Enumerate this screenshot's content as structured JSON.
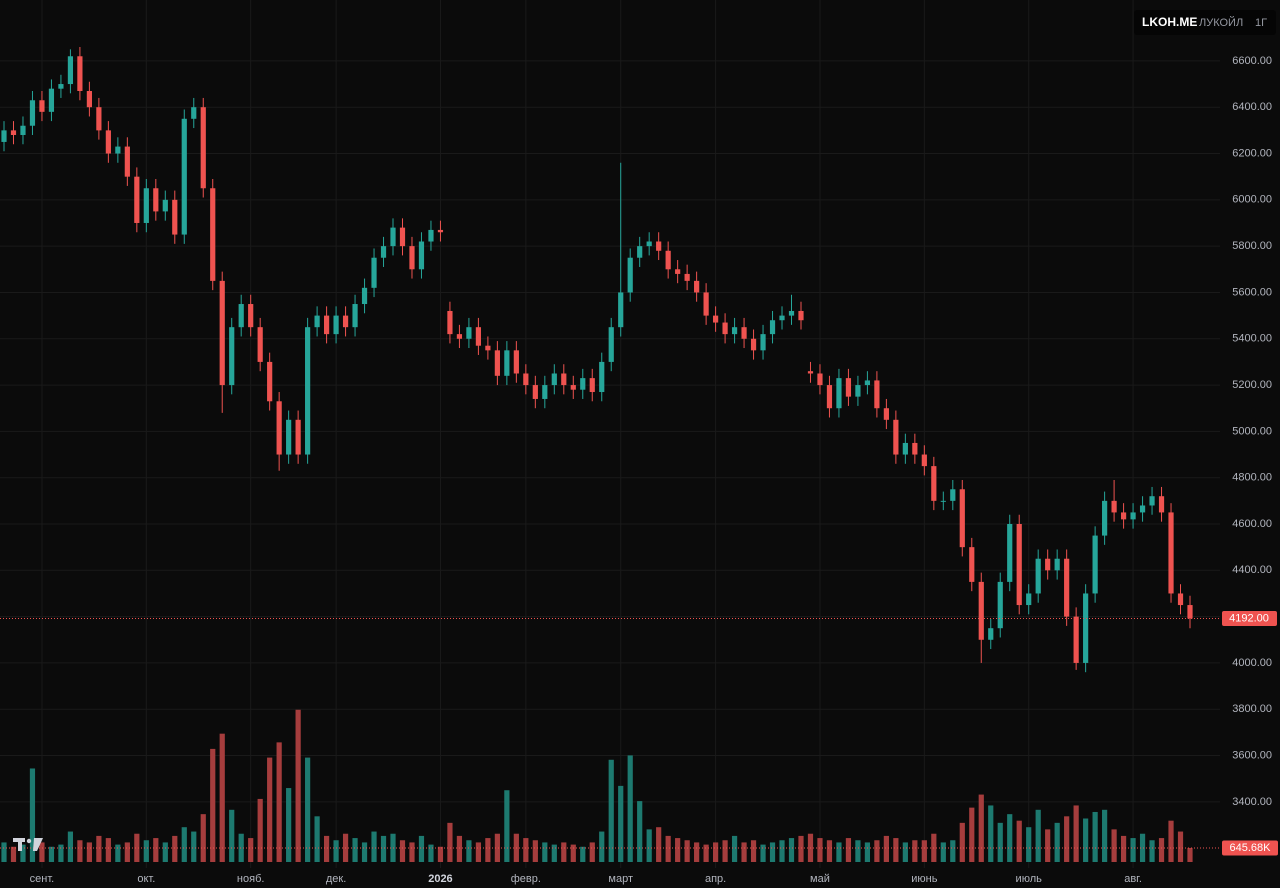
{
  "header": {
    "symbol": "LKOH.ME",
    "name": "ЛУКОЙЛ",
    "interval": "1Г"
  },
  "chart_data": {
    "type": "candlestick",
    "up_color": "#26a69a",
    "down_color": "#ef5350",
    "volume_up_color": "#1d7a70",
    "volume_down_color": "#a63d3d",
    "ylim": [
      3028,
      6863
    ],
    "yticks": [
      {
        "value": 3400,
        "label": "3400.00"
      },
      {
        "value": 3600,
        "label": "3600.00"
      },
      {
        "value": 3800,
        "label": "3800.00"
      },
      {
        "value": 4000,
        "label": "4000.00"
      },
      {
        "value": 4200,
        "label": "4200.00"
      },
      {
        "value": 4400,
        "label": "4400.00"
      },
      {
        "value": 4600,
        "label": "4600.00"
      },
      {
        "value": 4800,
        "label": "4800.00"
      },
      {
        "value": 5000,
        "label": "5000.00"
      },
      {
        "value": 5200,
        "label": "5200.00"
      },
      {
        "value": 5400,
        "label": "5400.00"
      },
      {
        "value": 5600,
        "label": "5600.00"
      },
      {
        "value": 5800,
        "label": "5800.00"
      },
      {
        "value": 6000,
        "label": "6000.00"
      },
      {
        "value": 6200,
        "label": "6200.00"
      },
      {
        "value": 6400,
        "label": "6400.00"
      },
      {
        "value": 6600,
        "label": "6600.00"
      }
    ],
    "volume_lim": [
      0,
      8000
    ],
    "grid": true,
    "x_labels": [
      {
        "label": "сент.",
        "index": 4
      },
      {
        "label": "окт.",
        "index": 15
      },
      {
        "label": "нояб.",
        "index": 26
      },
      {
        "label": "дек.",
        "index": 35
      },
      {
        "label": "2026",
        "index": 46,
        "emphasis": true
      },
      {
        "label": "февр.",
        "index": 55
      },
      {
        "label": "март",
        "index": 65
      },
      {
        "label": "апр.",
        "index": 75
      },
      {
        "label": "май",
        "index": 86
      },
      {
        "label": "июнь",
        "index": 97
      },
      {
        "label": "июль",
        "index": 108
      },
      {
        "label": "авг.",
        "index": 119
      }
    ],
    "open": [
      6250,
      6300,
      6280,
      6320,
      6430,
      6380,
      6480,
      6500,
      6620,
      6470,
      6400,
      6300,
      6200,
      6230,
      6100,
      5900,
      6050,
      5950,
      6000,
      5850,
      6350,
      6400,
      6050,
      5650,
      5200,
      5450,
      5550,
      5450,
      5300,
      5130,
      4900,
      5050,
      4900,
      5450,
      5500,
      5420,
      5500,
      5450,
      5550,
      5620,
      5750,
      5800,
      5880,
      5800,
      5700,
      5820,
      5870,
      5520,
      5420,
      5400,
      5450,
      5370,
      5350,
      5240,
      5350,
      5250,
      5200,
      5140,
      5200,
      5250,
      5200,
      5180,
      5230,
      5170,
      5300,
      5450,
      5600,
      5750,
      5800,
      5820,
      5780,
      5700,
      5680,
      5650,
      5600,
      5500,
      5470,
      5420,
      5450,
      5400,
      5350,
      5420,
      5480,
      5500,
      5520,
      5260,
      5250,
      5200,
      5100,
      5230,
      5150,
      5200,
      5220,
      5100,
      5050,
      4900,
      4950,
      4900,
      4850,
      4700,
      4700,
      4750,
      4500,
      4350,
      4100,
      4150,
      4350,
      4600,
      4250,
      4300,
      4450,
      4400,
      4450,
      4200,
      4000,
      4300,
      4550,
      4700,
      4650,
      4620,
      4650,
      4680,
      4720,
      4650,
      4300,
      4250
    ],
    "high": [
      6340,
      6340,
      6360,
      6470,
      6470,
      6520,
      6540,
      6650,
      6660,
      6510,
      6440,
      6340,
      6270,
      6270,
      6140,
      6090,
      6090,
      6040,
      6040,
      6390,
      6440,
      6440,
      6090,
      5690,
      5490,
      5590,
      5590,
      5490,
      5340,
      5170,
      5090,
      5090,
      5490,
      5540,
      5540,
      5540,
      5540,
      5590,
      5660,
      5790,
      5840,
      5920,
      5920,
      5840,
      5860,
      5910,
      5910,
      5560,
      5460,
      5490,
      5490,
      5410,
      5390,
      5390,
      5390,
      5290,
      5240,
      5240,
      5290,
      5290,
      5240,
      5270,
      5270,
      5340,
      5490,
      6160,
      5790,
      5840,
      5860,
      5860,
      5820,
      5740,
      5720,
      5690,
      5640,
      5540,
      5510,
      5490,
      5490,
      5440,
      5460,
      5520,
      5540,
      5590,
      5560,
      5300,
      5290,
      5240,
      5270,
      5270,
      5240,
      5260,
      5260,
      5140,
      5090,
      4990,
      4990,
      4940,
      4890,
      4740,
      4790,
      4790,
      4540,
      4390,
      4190,
      4390,
      4640,
      4640,
      4340,
      4490,
      4490,
      4490,
      4490,
      4240,
      4340,
      4590,
      4740,
      4790,
      4690,
      4690,
      4720,
      4760,
      4760,
      4690,
      4340,
      4290
    ],
    "low": [
      6210,
      6240,
      6240,
      6280,
      6340,
      6340,
      6440,
      6460,
      6430,
      6360,
      6260,
      6160,
      6160,
      6060,
      5860,
      5860,
      5910,
      5910,
      5810,
      5810,
      6310,
      6010,
      5610,
      5080,
      5160,
      5410,
      5410,
      5260,
      5090,
      4830,
      4860,
      4860,
      4860,
      5410,
      5380,
      5380,
      5410,
      5410,
      5510,
      5580,
      5710,
      5760,
      5760,
      5660,
      5660,
      5780,
      5820,
      5380,
      5360,
      5360,
      5330,
      5310,
      5200,
      5200,
      5210,
      5160,
      5100,
      5100,
      5160,
      5160,
      5140,
      5140,
      5130,
      5130,
      5260,
      5410,
      5560,
      5710,
      5760,
      5740,
      5660,
      5640,
      5610,
      5560,
      5460,
      5430,
      5380,
      5380,
      5360,
      5310,
      5310,
      5380,
      5440,
      5460,
      5440,
      5210,
      5160,
      5060,
      5060,
      5110,
      5110,
      5160,
      5060,
      5010,
      4860,
      4860,
      4860,
      4810,
      4660,
      4660,
      4660,
      4460,
      4310,
      4000,
      4060,
      4110,
      4310,
      4210,
      4210,
      4260,
      4360,
      4360,
      4160,
      3970,
      3960,
      4260,
      4510,
      4610,
      4580,
      4580,
      4610,
      4640,
      4610,
      4260,
      4210,
      4150
    ],
    "close": [
      6300,
      6280,
      6320,
      6430,
      6380,
      6480,
      6500,
      6620,
      6470,
      6400,
      6300,
      6200,
      6230,
      6100,
      5900,
      6050,
      5950,
      6000,
      5850,
      6350,
      6400,
      6050,
      5650,
      5200,
      5450,
      5550,
      5450,
      5300,
      5130,
      4900,
      5050,
      4900,
      5450,
      5500,
      5420,
      5500,
      5450,
      5550,
      5620,
      5750,
      5800,
      5880,
      5800,
      5700,
      5820,
      5870,
      5860,
      5420,
      5400,
      5450,
      5370,
      5350,
      5240,
      5350,
      5250,
      5200,
      5140,
      5200,
      5250,
      5200,
      5180,
      5230,
      5170,
      5300,
      5450,
      5600,
      5750,
      5800,
      5820,
      5780,
      5700,
      5680,
      5650,
      5600,
      5500,
      5470,
      5420,
      5450,
      5400,
      5350,
      5420,
      5480,
      5500,
      5520,
      5480,
      5250,
      5200,
      5100,
      5230,
      5150,
      5200,
      5220,
      5100,
      5050,
      4900,
      4950,
      4900,
      4850,
      4700,
      4700,
      4750,
      4500,
      4350,
      4100,
      4150,
      4350,
      4600,
      4250,
      4300,
      4450,
      4400,
      4450,
      4200,
      4000,
      4300,
      4550,
      4700,
      4650,
      4620,
      4650,
      4680,
      4720,
      4650,
      4300,
      4250,
      4192
    ],
    "volume": [
      900,
      700,
      800,
      4300,
      900,
      700,
      800,
      1400,
      1000,
      900,
      1200,
      1100,
      800,
      900,
      1300,
      1000,
      1100,
      900,
      1200,
      1600,
      1400,
      2200,
      5200,
      5900,
      2400,
      1300,
      1100,
      2900,
      4800,
      5500,
      3400,
      7000,
      4800,
      2100,
      1200,
      1000,
      1300,
      1100,
      900,
      1400,
      1200,
      1300,
      1000,
      900,
      1200,
      800,
      700,
      1800,
      1200,
      1000,
      900,
      1100,
      1300,
      3300,
      1300,
      1100,
      1000,
      900,
      800,
      900,
      800,
      700,
      900,
      1400,
      4700,
      3500,
      4900,
      2800,
      1500,
      1600,
      1200,
      1100,
      1000,
      900,
      800,
      900,
      1000,
      1200,
      900,
      1000,
      800,
      900,
      1000,
      1100,
      1200,
      1300,
      1100,
      1000,
      900,
      1100,
      1000,
      900,
      1000,
      1200,
      1100,
      900,
      1000,
      1000,
      1300,
      900,
      1000,
      1800,
      2500,
      3100,
      2600,
      1800,
      2200,
      1900,
      1600,
      2400,
      1500,
      1800,
      2100,
      2600,
      2000,
      2300,
      2400,
      1500,
      1200,
      1100,
      1300,
      1000,
      1100,
      1900,
      1400,
      645.68
    ],
    "last_price_label": "4192.00",
    "last_volume_label": "645.68K"
  }
}
